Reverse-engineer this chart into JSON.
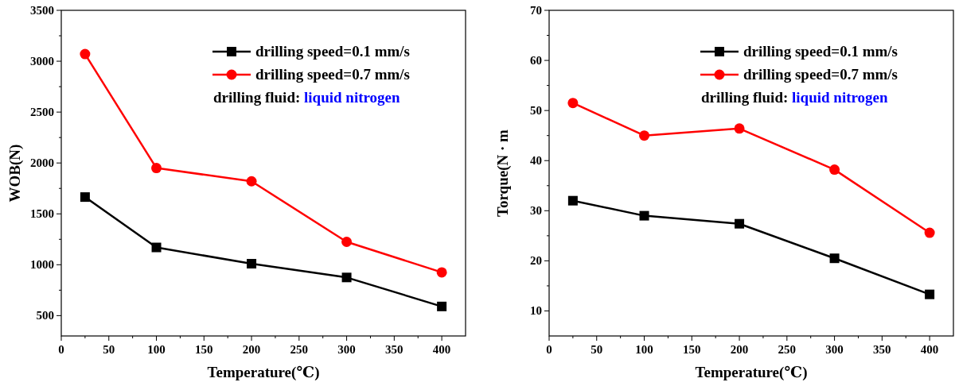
{
  "chart_data": [
    {
      "type": "line",
      "xlabel": "Temperature(℃)",
      "ylabel": "WOB(N)",
      "x": [
        25,
        100,
        200,
        300,
        400
      ],
      "xlim": [
        0,
        425
      ],
      "xticks": [
        0,
        50,
        100,
        150,
        200,
        250,
        300,
        350,
        400
      ],
      "ylim": [
        300,
        3500
      ],
      "yticks": [
        500,
        1000,
        1500,
        2000,
        2500,
        3000,
        3500
      ],
      "grid": false,
      "legend": "top right",
      "annotations": [
        "drilling fluid:",
        "liquid nitrogen"
      ],
      "series": [
        {
          "name": "drilling speed=0.1 mm/s",
          "color": "#000000",
          "marker": "square",
          "values": [
            1665,
            1170,
            1010,
            875,
            590
          ]
        },
        {
          "name": "drilling speed=0.7 mm/s",
          "color": "#ff0000",
          "marker": "circle",
          "values": [
            3070,
            1950,
            1820,
            1225,
            925
          ]
        }
      ]
    },
    {
      "type": "line",
      "xlabel": "Temperature(℃)",
      "ylabel": "Torque(N · m",
      "x": [
        25,
        100,
        200,
        300,
        400
      ],
      "xlim": [
        0,
        425
      ],
      "xticks": [
        0,
        50,
        100,
        150,
        200,
        250,
        300,
        350,
        400
      ],
      "ylim": [
        5,
        70
      ],
      "yticks": [
        10,
        20,
        30,
        40,
        50,
        60,
        70
      ],
      "grid": false,
      "legend": "top right",
      "annotations": [
        "drilling fluid:",
        "liquid nitrogen"
      ],
      "series": [
        {
          "name": "drilling speed=0.1 mm/s",
          "color": "#000000",
          "marker": "square",
          "values": [
            32,
            29,
            27.4,
            20.5,
            13.3
          ]
        },
        {
          "name": "drilling speed=0.7 mm/s",
          "color": "#ff0000",
          "marker": "circle",
          "values": [
            51.5,
            45,
            46.4,
            38.2,
            25.6
          ]
        }
      ]
    }
  ]
}
